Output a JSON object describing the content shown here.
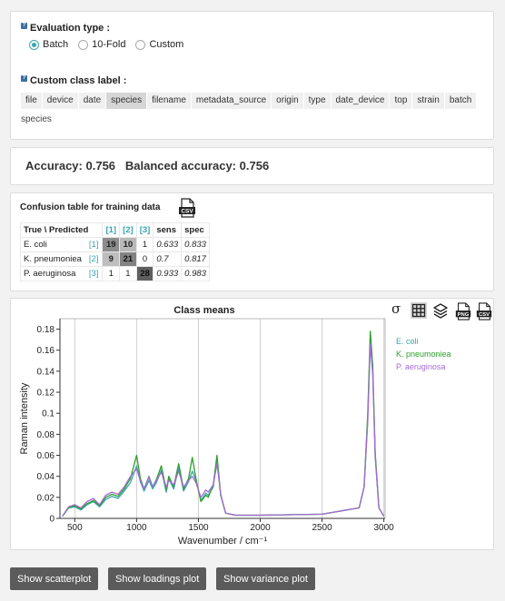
{
  "evaluation": {
    "label": "Evaluation type :",
    "options": [
      "Batch",
      "10-Fold",
      "Custom"
    ],
    "selected_index": 0
  },
  "custom_class": {
    "label": "Custom class label :",
    "tags": [
      "file",
      "device",
      "date",
      "species",
      "filename",
      "metadata_source",
      "origin",
      "type",
      "date_device",
      "top",
      "strain",
      "batch"
    ],
    "selected_tag_index": 3,
    "selected_value": "species"
  },
  "accuracy": {
    "accuracy_label": "Accuracy:",
    "accuracy_value": "0.756",
    "balanced_label": "Balanced accuracy:",
    "balanced_value": "0.756"
  },
  "confusion": {
    "title": "Confusion table for training data",
    "corner": "True \\ Predicted",
    "col_headers": [
      "[1]",
      "[2]",
      "[3]"
    ],
    "metric_headers": [
      "sens",
      "spec"
    ],
    "rows": [
      {
        "name": "E. coli",
        "idx": "[1]",
        "cells": [
          "19",
          "10",
          "1"
        ],
        "sens": "0.633",
        "spec": "0.833"
      },
      {
        "name": "K. pneumoniea",
        "idx": "[2]",
        "cells": [
          "9",
          "21",
          "0"
        ],
        "sens": "0.7",
        "spec": "0.817"
      },
      {
        "name": "P. aeruginosa",
        "idx": "[3]",
        "cells": [
          "1",
          "1",
          "28"
        ],
        "sens": "0.933",
        "spec": "0.983"
      }
    ]
  },
  "chart_title": "Class means",
  "toolbar": {
    "sigma": "σ"
  },
  "chart_data": {
    "type": "line",
    "title": "Class means",
    "xlabel": "Wavenumber / cm⁻¹",
    "ylabel": "Raman intensity",
    "xlim": [
      380,
      3010
    ],
    "ylim": [
      0,
      0.19
    ],
    "x_ticks": [
      500,
      1000,
      1500,
      2000,
      2500,
      3000
    ],
    "y_ticks": [
      0,
      0.02,
      0.04,
      0.06,
      0.08,
      0.1,
      0.12,
      0.14,
      0.16,
      0.18
    ],
    "grid": "x-only",
    "legend_position": "right",
    "x": [
      400,
      450,
      500,
      550,
      600,
      650,
      700,
      750,
      800,
      850,
      900,
      950,
      1000,
      1030,
      1060,
      1100,
      1130,
      1160,
      1200,
      1240,
      1260,
      1300,
      1340,
      1380,
      1420,
      1450,
      1480,
      1520,
      1560,
      1580,
      1620,
      1650,
      1680,
      1720,
      1760,
      1800,
      2000,
      2500,
      2800,
      2840,
      2870,
      2890,
      2910,
      2930,
      2960,
      3000
    ],
    "series": [
      {
        "name": "E. coli",
        "color": "#3aa6b0",
        "values": [
          0.002,
          0.01,
          0.011,
          0.008,
          0.013,
          0.016,
          0.011,
          0.018,
          0.021,
          0.019,
          0.026,
          0.034,
          0.05,
          0.035,
          0.026,
          0.036,
          0.028,
          0.034,
          0.046,
          0.025,
          0.038,
          0.028,
          0.048,
          0.026,
          0.035,
          0.045,
          0.036,
          0.017,
          0.024,
          0.022,
          0.03,
          0.057,
          0.022,
          0.005,
          0.004,
          0.003,
          0.003,
          0.004,
          0.01,
          0.03,
          0.095,
          0.17,
          0.14,
          0.06,
          0.01,
          0.002
        ]
      },
      {
        "name": "K. pneumoniea",
        "color": "#2ca02c",
        "values": [
          0.002,
          0.01,
          0.012,
          0.009,
          0.014,
          0.017,
          0.012,
          0.02,
          0.023,
          0.021,
          0.028,
          0.038,
          0.06,
          0.038,
          0.028,
          0.04,
          0.03,
          0.037,
          0.05,
          0.027,
          0.04,
          0.03,
          0.052,
          0.028,
          0.038,
          0.058,
          0.038,
          0.016,
          0.022,
          0.02,
          0.032,
          0.06,
          0.022,
          0.005,
          0.004,
          0.003,
          0.003,
          0.004,
          0.01,
          0.03,
          0.1,
          0.178,
          0.145,
          0.062,
          0.01,
          0.002
        ]
      },
      {
        "name": "P. aeruginosa",
        "color": "#a36bd4",
        "values": [
          0.002,
          0.011,
          0.013,
          0.01,
          0.016,
          0.019,
          0.013,
          0.022,
          0.025,
          0.023,
          0.03,
          0.04,
          0.047,
          0.036,
          0.028,
          0.039,
          0.03,
          0.036,
          0.044,
          0.03,
          0.036,
          0.032,
          0.045,
          0.03,
          0.036,
          0.04,
          0.034,
          0.02,
          0.027,
          0.025,
          0.032,
          0.052,
          0.023,
          0.005,
          0.004,
          0.003,
          0.003,
          0.004,
          0.01,
          0.03,
          0.093,
          0.166,
          0.137,
          0.058,
          0.01,
          0.002
        ]
      }
    ]
  },
  "buttons": {
    "scatterplot": "Show scatterplot",
    "loadings": "Show loadings plot",
    "variance": "Show variance plot"
  }
}
